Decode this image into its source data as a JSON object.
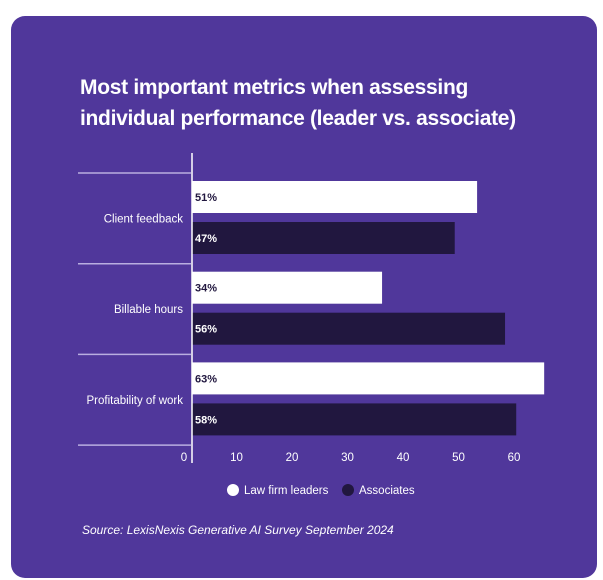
{
  "title_lines": [
    "Most important metrics when assessing",
    "individual performance (leader vs. associate)"
  ],
  "source": "Source: LexisNexis Generative AI Survey September 2024",
  "colors": {
    "background": "#50379B",
    "leaders": "#FFFFFF",
    "associates": "#21173F"
  },
  "chart_data": {
    "type": "bar",
    "orientation": "horizontal",
    "title": "Most important metrics when assessing individual performance (leader vs. associate)",
    "categories": [
      "Client feedback",
      "Billable hours",
      "Profitability of work"
    ],
    "series": [
      {
        "name": "Law firm leaders",
        "values": [
          51,
          34,
          63
        ],
        "labels": [
          "51%",
          "34%",
          "63%"
        ]
      },
      {
        "name": "Associates",
        "values": [
          47,
          56,
          58
        ],
        "labels": [
          "47%",
          "56%",
          "58%"
        ]
      }
    ],
    "xticks": [
      0,
      10,
      20,
      30,
      40,
      50,
      60
    ],
    "xlim": [
      0,
      65
    ],
    "legend_position": "bottom",
    "grid": false
  }
}
